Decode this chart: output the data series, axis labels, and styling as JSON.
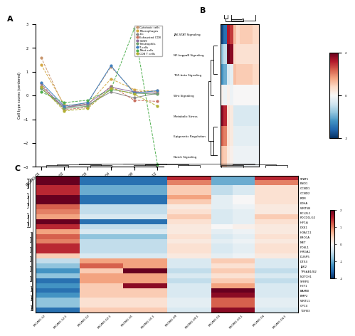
{
  "panel_a": {
    "x_labels": [
      "PROMO-01",
      "PROMO-02",
      "PROMO-03",
      "PROMO-04",
      "PROMO-09",
      "PROMO-12"
    ],
    "series": [
      {
        "name": "Cytotoxic cells",
        "color": "#c8956c",
        "linestyle": "--",
        "values": [
          1.6,
          -0.5,
          -0.3,
          1.2,
          0.15,
          0.2
        ]
      },
      {
        "name": "Macrophages",
        "color": "#d4a843",
        "linestyle": "--",
        "values": [
          1.3,
          -0.4,
          -0.4,
          0.7,
          0.25,
          0.15
        ]
      },
      {
        "name": "DC",
        "color": "#888888",
        "linestyle": "-",
        "values": [
          0.3,
          -0.5,
          -0.4,
          0.15,
          -0.1,
          0.1
        ]
      },
      {
        "name": "Exhausted CD8",
        "color": "#c87060",
        "linestyle": "--",
        "values": [
          0.5,
          -0.6,
          -0.5,
          0.4,
          -0.2,
          -0.25
        ]
      },
      {
        "name": "CD69",
        "color": "#9070a0",
        "linestyle": "-",
        "values": [
          0.4,
          -0.5,
          -0.35,
          0.35,
          0.15,
          0.1
        ]
      },
      {
        "name": "Neutrophils",
        "color": "#70a070",
        "linestyle": "-",
        "values": [
          0.3,
          -0.55,
          -0.45,
          0.25,
          0.1,
          0.05
        ]
      },
      {
        "name": "T-cells",
        "color": "#4080c0",
        "linestyle": "-",
        "values": [
          0.55,
          -0.45,
          -0.3,
          1.25,
          0.1,
          0.2
        ]
      },
      {
        "name": "Mast-cells",
        "color": "#50b050",
        "linestyle": "--",
        "values": [
          0.15,
          -0.3,
          -0.2,
          0.25,
          2.8,
          -2.9
        ]
      },
      {
        "name": "CD8 T cells",
        "color": "#b0b030",
        "linestyle": "--",
        "values": [
          0.35,
          -0.65,
          -0.55,
          0.3,
          0.05,
          -0.45
        ]
      }
    ],
    "ylabel": "Cell type scores (centered)",
    "ylim": [
      -3,
      3
    ]
  },
  "panel_b": {
    "row_labels": [
      "JAK-STAT Signaling",
      "NF-kappaB Signaling",
      "TGF-beta Signaling",
      "Wnt Signaling",
      "Metabolic Stress",
      "Epigenetic Regulation",
      "Notch Signaling"
    ],
    "col_count": 12,
    "data": [
      [
        -1.8,
        -1.5,
        1.6,
        1.4,
        0.6,
        0.4,
        0.5,
        0.5,
        0.5,
        0.5,
        0.4,
        0.4
      ],
      [
        -0.8,
        -0.5,
        2.0,
        1.8,
        0.4,
        0.3,
        0.3,
        0.3,
        0.3,
        0.3,
        0.3,
        0.3
      ],
      [
        -1.2,
        -1.0,
        -0.3,
        -0.2,
        0.6,
        0.5,
        0.5,
        0.5,
        0.5,
        0.5,
        0.4,
        0.4
      ],
      [
        0.1,
        -0.1,
        0.1,
        -0.1,
        0.0,
        0.0,
        0.0,
        0.0,
        0.0,
        0.0,
        0.0,
        0.0
      ],
      [
        1.8,
        1.5,
        0.3,
        0.2,
        -0.3,
        -0.3,
        -0.3,
        -0.3,
        -0.3,
        -0.3,
        -0.3,
        -0.3
      ],
      [
        1.2,
        1.0,
        0.3,
        0.2,
        -0.2,
        -0.2,
        -0.2,
        -0.2,
        -0.2,
        -0.2,
        -0.2,
        -0.2
      ],
      [
        0.6,
        0.5,
        0.2,
        0.1,
        -0.1,
        -0.1,
        -0.1,
        -0.1,
        -0.1,
        -0.1,
        -0.1,
        -0.1
      ]
    ],
    "vmin": -2,
    "vmax": 2,
    "cmap": "RdBu_r",
    "colorbar_ticks": [
      2,
      1,
      0,
      -1,
      -2
    ],
    "colorbar_labels": [
      "2",
      "1",
      "0",
      "-1",
      "-2"
    ]
  },
  "panel_c": {
    "row_labels": [
      "STAT1",
      "ENO1",
      "CCND1",
      "CCND2",
      "PKM",
      "LDHA",
      "WNT5B",
      "BCL2L1",
      "PDCD1LG2",
      "HIF1A",
      "DKK1",
      "HDAC11",
      "ERO1A",
      "MET",
      "FOSL1",
      "HMGA1",
      "DUSP5",
      "DTX4",
      "JAK2",
      "TPSAB1/B2",
      "NOTCH1",
      "SFRP4",
      "HEY1",
      "BAMBI",
      "BMP2",
      "WNT11",
      "GPC4",
      "TGFB3"
    ],
    "col_labels": [
      "PROMO-12",
      "PROMO-12.1",
      "PROMO-02",
      "PROMO-02.1",
      "PROMO-01",
      "PROMO-01.1",
      "PROMO-09",
      "PROMO-09.1",
      "PROMO-03",
      "PROMO-03.1",
      "PROMO-04",
      "PROMO-04.1"
    ],
    "vmin": -2,
    "vmax": 2,
    "cmap": "RdBu_r",
    "colorbar_ticks": [
      2,
      1,
      0,
      -1,
      -2
    ],
    "colorbar_labels": [
      "2",
      "1",
      "0",
      "-1",
      "-2"
    ]
  },
  "background_color": "#ffffff"
}
